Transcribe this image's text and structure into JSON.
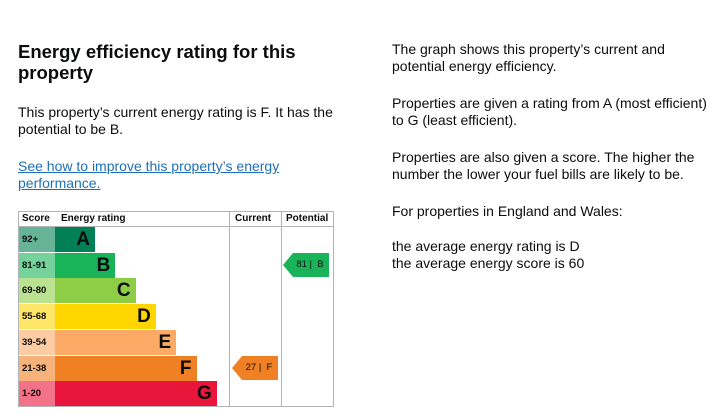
{
  "heading": "Energy efficiency rating for this property",
  "summary": "This property’s current energy rating is F. It has the potential to be B.",
  "improve_link": "See how to improve this property’s energy performance.",
  "info": {
    "p1": "The graph shows this property’s current and potential energy efficiency.",
    "p2": "Properties are given a rating from A (most efficient) to G (least efficient).",
    "p3": "Properties are also given a score. The higher the number the lower your fuel bills are likely to be.",
    "p4": "For properties in England and Wales:",
    "p5": "the average energy rating is D",
    "p6": "the average energy score is 60"
  },
  "chart": {
    "headers": {
      "score": "Score",
      "rating": "Energy rating",
      "current": "Current",
      "potential": "Potential"
    },
    "bands": [
      {
        "score": "92+",
        "letter": "A",
        "color": "#008054",
        "score_bg": "#66b398"
      },
      {
        "score": "81-91",
        "letter": "B",
        "color": "#19b459",
        "score_bg": "#75d29b"
      },
      {
        "score": "69-80",
        "letter": "C",
        "color": "#8dce46",
        "score_bg": "#bbe290"
      },
      {
        "score": "55-68",
        "letter": "D",
        "color": "#ffd500",
        "score_bg": "#ffe666"
      },
      {
        "score": "39-54",
        "letter": "E",
        "color": "#fcaa65",
        "score_bg": "#fdcca3"
      },
      {
        "score": "21-38",
        "letter": "F",
        "color": "#ef8023",
        "score_bg": "#f5b37b"
      },
      {
        "score": "1-20",
        "letter": "G",
        "color": "#e9153b",
        "score_bg": "#f27389"
      }
    ],
    "current": {
      "score": 27,
      "letter": "F",
      "label": "27 |  F",
      "color": "#ef8023"
    },
    "potential": {
      "score": 81,
      "letter": "B",
      "label": "81 |  B",
      "color": "#19b459"
    }
  }
}
